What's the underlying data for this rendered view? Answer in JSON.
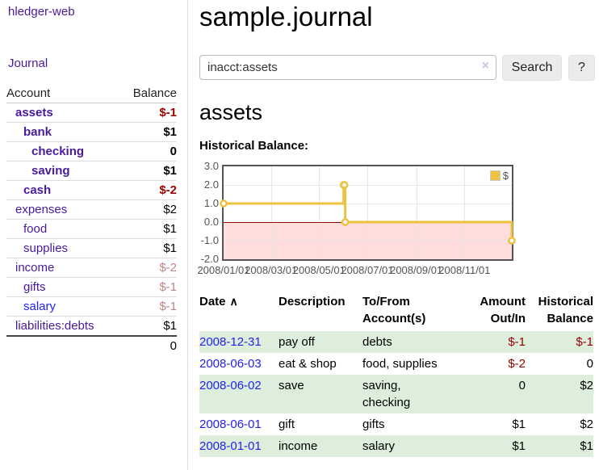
{
  "app": {
    "brand": "hledger-web"
  },
  "sidebar": {
    "journal_link": "Journal",
    "accounts_table": {
      "account_header": "Account",
      "balance_header": "Balance",
      "rows": [
        {
          "name": "assets",
          "balance": "$-1",
          "depth": 0,
          "bold": true,
          "name_color": "purple",
          "balance_color": "neg-strong"
        },
        {
          "name": "bank",
          "balance": "$1",
          "depth": 1,
          "bold": true,
          "name_color": "purple",
          "balance_color": "normal"
        },
        {
          "name": "checking",
          "balance": "0",
          "depth": 2,
          "bold": true,
          "name_color": "purple",
          "balance_color": "normal"
        },
        {
          "name": "saving",
          "balance": "$1",
          "depth": 2,
          "bold": true,
          "name_color": "purple",
          "balance_color": "normal"
        },
        {
          "name": "cash",
          "balance": "$-2",
          "depth": 1,
          "bold": true,
          "name_color": "purple",
          "balance_color": "neg-strong"
        },
        {
          "name": "expenses",
          "balance": "$2",
          "depth": 0,
          "bold": false,
          "name_color": "purple",
          "balance_color": "normal"
        },
        {
          "name": "food",
          "balance": "$1",
          "depth": 1,
          "bold": false,
          "name_color": "purple",
          "balance_color": "normal"
        },
        {
          "name": "supplies",
          "balance": "$1",
          "depth": 1,
          "bold": false,
          "name_color": "purple",
          "balance_color": "normal"
        },
        {
          "name": "income",
          "balance": "$-2",
          "depth": 0,
          "bold": false,
          "name_color": "purple",
          "balance_color": "neg-muted"
        },
        {
          "name": "gifts",
          "balance": "$-1",
          "depth": 1,
          "bold": false,
          "name_color": "purple",
          "balance_color": "neg-muted"
        },
        {
          "name": "salary",
          "balance": "$-1",
          "depth": 1,
          "bold": false,
          "name_color": "blue",
          "balance_color": "neg-muted"
        },
        {
          "name": "liabilities:debts",
          "balance": "$1",
          "depth": 0,
          "bold": false,
          "name_color": "purple",
          "balance_color": "normal"
        }
      ],
      "total": "0"
    }
  },
  "header": {
    "title": "sample.journal"
  },
  "search": {
    "value": "inacct:assets",
    "clear_icon": "×",
    "search_button": "Search",
    "help_button": "?"
  },
  "account_view": {
    "heading": "assets",
    "section_label": "Historical Balance:"
  },
  "chart_data": {
    "type": "line",
    "title": "Historical Balance:",
    "steps": true,
    "x_range": [
      "2008-01-01",
      "2008-12-31"
    ],
    "ylim": [
      -2,
      3
    ],
    "y_ticks": [
      3.0,
      2.0,
      1.0,
      0.0,
      -1.0,
      -2.0
    ],
    "x_ticks": [
      {
        "date": "2008-01-01",
        "label": "2008/01/01"
      },
      {
        "date": "2008-03-01",
        "label": "2008/03/01"
      },
      {
        "date": "2008-05-01",
        "label": "2008/05/01"
      },
      {
        "date": "2008-07-01",
        "label": "2008/07/01"
      },
      {
        "date": "2008-09-01",
        "label": "2008/09/01"
      },
      {
        "date": "2008-11-01",
        "label": "2008/11/01"
      }
    ],
    "series": [
      {
        "name": "$",
        "color": "#edc240",
        "marker": "circle-open",
        "points": [
          {
            "date": "2008-01-01",
            "value": 1
          },
          {
            "date": "2008-06-01",
            "value": 2
          },
          {
            "date": "2008-06-02",
            "value": 2
          },
          {
            "date": "2008-06-03",
            "value": 0
          },
          {
            "date": "2008-12-31",
            "value": -1
          }
        ]
      }
    ],
    "legend_position": "top-right",
    "grid": true,
    "negative_region_color": "#ffdddd",
    "zero_line_color": "#990000",
    "border_color": "#545454"
  },
  "register": {
    "columns": [
      {
        "label": "Date",
        "icon": "∧",
        "align": "left"
      },
      {
        "label": "Description",
        "align": "left"
      },
      {
        "label": "To/From Account(s)",
        "align": "left"
      },
      {
        "label": "Amount Out/In",
        "align": "right"
      },
      {
        "label": "Historical Balance",
        "align": "right"
      }
    ],
    "rows": [
      {
        "date": "2008-12-31",
        "description": "pay off",
        "accounts": "debts",
        "amount": "$-1",
        "amount_neg": true,
        "balance": "$-1",
        "balance_neg": true
      },
      {
        "date": "2008-06-03",
        "description": "eat & shop",
        "accounts": "food, supplies",
        "amount": "$-2",
        "amount_neg": true,
        "balance": "0",
        "balance_neg": false
      },
      {
        "date": "2008-06-02",
        "description": "save",
        "accounts": "saving, checking",
        "amount": "0",
        "amount_neg": false,
        "balance": "$2",
        "balance_neg": false
      },
      {
        "date": "2008-06-01",
        "description": "gift",
        "accounts": "gifts",
        "amount": "$1",
        "amount_neg": false,
        "balance": "$2",
        "balance_neg": false
      },
      {
        "date": "2008-01-01",
        "description": "income",
        "accounts": "salary",
        "amount": "$1",
        "amount_neg": false,
        "balance": "$1",
        "balance_neg": false
      }
    ]
  },
  "colors": {
    "link_purple": "#4a1a9c",
    "link_blue": "#2222ee",
    "negative_strong": "#990000",
    "negative_muted": "#c08484",
    "row_stripe_green": "#ddeedd",
    "chart_line_gold": "#edc240"
  }
}
